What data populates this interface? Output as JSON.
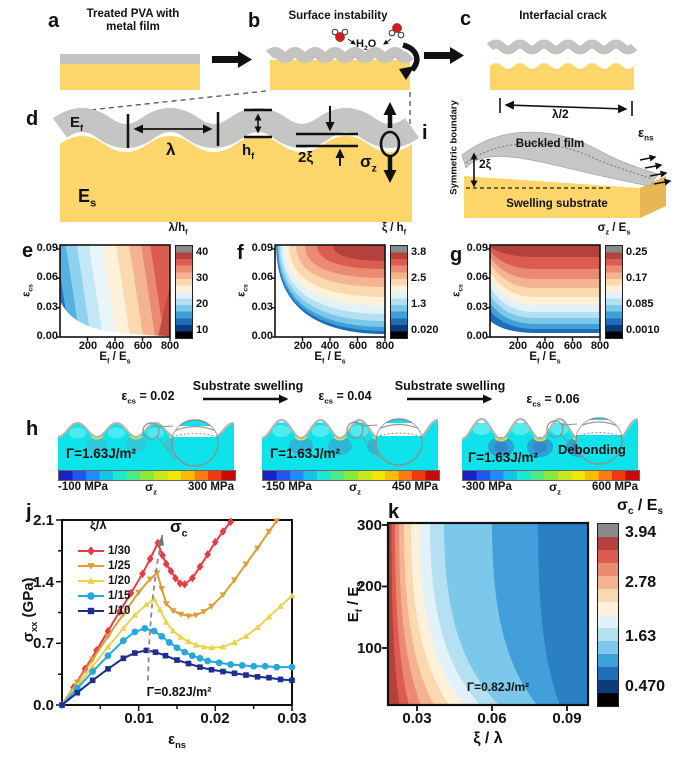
{
  "letters": {
    "a": "a",
    "b": "b",
    "c": "c",
    "d": "d",
    "e": "e",
    "f": "f",
    "g": "g",
    "h": "h",
    "i": "i",
    "j": "j",
    "k": "k"
  },
  "row1": {
    "a_title_1": "Treated PVA with",
    "a_title_2": "metal film",
    "b_title": "Surface instability",
    "c_title": "Interfacial crack"
  },
  "labels": {
    "h2o": [
      [
        "H",
        0
      ],
      [
        "2",
        1
      ],
      [
        "O",
        0
      ]
    ],
    "ef": [
      [
        "E",
        0
      ],
      [
        "f",
        1
      ]
    ],
    "es": [
      [
        "E",
        0
      ],
      [
        "s",
        1
      ]
    ],
    "hf": [
      [
        "h",
        0
      ],
      [
        "f",
        1
      ]
    ],
    "lambda": "λ",
    "two_xi": "2ξ",
    "half_wavelength": "λ/2",
    "eps_cs": [
      [
        "ε",
        0
      ],
      [
        "cs",
        1
      ]
    ],
    "eps_ns": [
      [
        "ε",
        0
      ],
      [
        "ns",
        1
      ]
    ],
    "sigma_z": [
      [
        "σ",
        0
      ],
      [
        "z",
        1
      ]
    ],
    "sigma_c": [
      [
        "σ",
        0
      ],
      [
        "c",
        1
      ]
    ],
    "sigma_xx_gpa": [
      [
        "σ",
        0
      ],
      [
        "xx",
        1
      ],
      [
        " (GPa)",
        0
      ]
    ],
    "ef_es": [
      [
        "E",
        0
      ],
      [
        "f",
        1
      ],
      [
        " / E",
        0
      ],
      [
        "s",
        1
      ]
    ],
    "lambda_hf": [
      [
        "λ/h",
        0
      ],
      [
        "f",
        1
      ]
    ],
    "xi_hf": [
      [
        "ξ / h",
        0
      ],
      [
        "f",
        1
      ]
    ],
    "sigmaz_es": [
      [
        "σ",
        0
      ],
      [
        "z",
        1
      ],
      [
        " / E",
        0
      ],
      [
        "s",
        1
      ]
    ],
    "sigmac_es": [
      [
        "σ",
        0
      ],
      [
        "c",
        1
      ],
      [
        " / E",
        0
      ],
      [
        "s",
        1
      ]
    ],
    "xi_lambda": "ξ / λ",
    "buckled_film": "Buckled film",
    "symmetric_boundary": "Symmetric boundary",
    "swelling_substrate": "Swelling substrate"
  },
  "panel_h": {
    "swelling_label": "Substrate swelling",
    "cb_center": [
      [
        "σ",
        0
      ],
      [
        "z",
        1
      ]
    ],
    "cases": [
      {
        "eps": [
          [
            "ε",
            0
          ],
          [
            "cs",
            1
          ],
          [
            " = 0.02",
            0
          ]
        ],
        "gamma": "Γ=1.63J/m²",
        "cb_min": "-100 MPa",
        "cb_max": "300 MPa"
      },
      {
        "eps": [
          [
            "ε",
            0
          ],
          [
            "cs",
            1
          ],
          [
            " = 0.04",
            0
          ]
        ],
        "gamma": "Γ=1.63J/m²",
        "cb_min": "-150 MPa",
        "cb_max": "450 MPa"
      },
      {
        "eps": [
          [
            "ε",
            0
          ],
          [
            "cs",
            1
          ],
          [
            " = 0.06",
            0
          ]
        ],
        "gamma": "Γ=1.63J/m²",
        "cb_min": "-300 MPa",
        "cb_max": "600 MPa",
        "debonding": "Debonding"
      }
    ]
  },
  "colors": {
    "palette": [
      "#8a8a8a",
      "#b5413c",
      "#dc5c50",
      "#eb8a72",
      "#f5b491",
      "#fbd9af",
      "#fdf2d9",
      "#e2f2f8",
      "#b4e0f2",
      "#7cc8ea",
      "#3fa0d8",
      "#1d6db8",
      "#0b3d7e",
      "#000000"
    ],
    "jet": [
      "#1822c8",
      "#2255f0",
      "#1f8cfa",
      "#16c3ea",
      "#1ce8d4",
      "#4ce98a",
      "#8ae83c",
      "#c6e81e",
      "#f2e606",
      "#fbbc02",
      "#fb7d10",
      "#ee3a0c",
      "#c40a0a"
    ],
    "substrate_yellow": "#fcd66b",
    "film_gray": "#c3c3c1",
    "fem_cyan": "#0ee2ea",
    "water_red": "#c92121",
    "debond_text": "#3b5a68",
    "guide_gray": "#8a8a8a"
  },
  "chart_data": [
    {
      "id": "e",
      "type": "contour",
      "xlabel": "Ef / Es",
      "ylabel": "εcs",
      "xlim": [
        0,
        800
      ],
      "ylim": [
        0,
        0.094
      ],
      "xtick_labels": [
        "200",
        "400",
        "600",
        "800"
      ],
      "ytick_labels": [
        "0.09",
        "0.06",
        "0.03",
        "0.00"
      ],
      "colorbar_title": "λ/hf",
      "cbar_tick_labels": [
        "40",
        "30",
        "20",
        "10"
      ],
      "levels": [
        10,
        20,
        30,
        40
      ],
      "trend": "wrinkle wavelength ratio λ/hf rises with Ef/Es (near-vertical contours) from ~10 (blue, Ef/Es<100) to >40 (dark red, Ef/Es≈800); white wedge at low εcs = no wrinkling"
    },
    {
      "id": "f",
      "type": "contour",
      "xlabel": "Ef / Es",
      "ylabel": "εcs",
      "xlim": [
        0,
        800
      ],
      "ylim": [
        0,
        0.094
      ],
      "xtick_labels": [
        "200",
        "400",
        "600",
        "800"
      ],
      "ytick_labels": [
        "0.09",
        "0.06",
        "0.03",
        "0.00"
      ],
      "colorbar_title": "ξ / hf",
      "cbar_tick_labels": [
        "3.8",
        "2.5",
        "1.3",
        "0.020"
      ],
      "levels": [
        0.02,
        1.3,
        2.5,
        3.8
      ],
      "trend": "amplitude ratio ξ/hf grows with both Ef/Es and εcs; hyperbolic contours from ~0.02 near the axes to ~3.8 at the top-right corner"
    },
    {
      "id": "g",
      "type": "contour",
      "xlabel": "Ef / Es",
      "ylabel": "εcs",
      "xlim": [
        0,
        800
      ],
      "ylim": [
        0,
        0.094
      ],
      "xtick_labels": [
        "200",
        "400",
        "600",
        "800"
      ],
      "ytick_labels": [
        "0.09",
        "0.06",
        "0.03",
        "0.00"
      ],
      "colorbar_title": "σz / Es",
      "cbar_tick_labels": [
        "0.25",
        "0.17",
        "0.085",
        "0.0010"
      ],
      "levels": [
        0.001,
        0.085,
        0.17,
        0.25
      ],
      "trend": "normal interface stress σz/Es increases mainly with εcs (near-horizontal contours), from ~0.001 (blue, bottom) to ~0.25 (dark red, top)"
    },
    {
      "id": "j",
      "type": "line",
      "xlabel": "εns",
      "ylabel": "σxx (GPa)",
      "xlim": [
        0,
        0.03
      ],
      "ylim": [
        0,
        2.1
      ],
      "xtick_labels": [
        "0.01",
        "0.02",
        "0.03"
      ],
      "ytick_labels": [
        "2.1",
        "1.4",
        "0.7",
        "0.0"
      ],
      "legend_title": "ξ/λ",
      "legend_position": "top-left",
      "annotation_peak": "σc",
      "annotation_gamma": "Γ=0.82J/m²",
      "guide": [
        [
          0.0112,
          0.28
        ],
        [
          0.0114,
          0.75
        ],
        [
          0.0118,
          1.2
        ],
        [
          0.0124,
          1.6
        ],
        [
          0.0131,
          1.93
        ]
      ],
      "series": [
        {
          "name": "1/30",
          "color": "#e63c46",
          "marker": "diamond",
          "points": [
            [
              0,
              0
            ],
            [
              0.0015,
              0.2
            ],
            [
              0.003,
              0.41
            ],
            [
              0.0045,
              0.62
            ],
            [
              0.006,
              0.84
            ],
            [
              0.0075,
              1.06
            ],
            [
              0.009,
              1.27
            ],
            [
              0.0105,
              1.49
            ],
            [
              0.0115,
              1.66
            ],
            [
              0.0125,
              1.84
            ],
            [
              0.0131,
              1.7
            ],
            [
              0.0136,
              1.6
            ],
            [
              0.0142,
              1.52
            ],
            [
              0.0148,
              1.44
            ],
            [
              0.0154,
              1.38
            ],
            [
              0.016,
              1.37
            ],
            [
              0.017,
              1.44
            ],
            [
              0.018,
              1.57
            ],
            [
              0.019,
              1.71
            ],
            [
              0.02,
              1.85
            ],
            [
              0.021,
              1.97
            ],
            [
              0.022,
              2.08
            ]
          ]
        },
        {
          "name": "1/25",
          "color": "#dd9e35",
          "marker": "tri-down",
          "points": [
            [
              0,
              0
            ],
            [
              0.002,
              0.26
            ],
            [
              0.004,
              0.52
            ],
            [
              0.006,
              0.78
            ],
            [
              0.008,
              1.03
            ],
            [
              0.01,
              1.28
            ],
            [
              0.0115,
              1.43
            ],
            [
              0.0124,
              1.5
            ],
            [
              0.013,
              1.32
            ],
            [
              0.0136,
              1.15
            ],
            [
              0.0145,
              1.07
            ],
            [
              0.0155,
              1.03
            ],
            [
              0.0165,
              1.01
            ],
            [
              0.0175,
              1.02
            ],
            [
              0.0185,
              1.06
            ],
            [
              0.0195,
              1.12
            ],
            [
              0.021,
              1.25
            ],
            [
              0.0225,
              1.42
            ],
            [
              0.024,
              1.6
            ],
            [
              0.0255,
              1.78
            ],
            [
              0.027,
              1.97
            ],
            [
              0.028,
              2.09
            ]
          ]
        },
        {
          "name": "1/20",
          "color": "#e9d44f",
          "marker": "tri-up",
          "points": [
            [
              0,
              0
            ],
            [
              0.002,
              0.22
            ],
            [
              0.004,
              0.44
            ],
            [
              0.006,
              0.66
            ],
            [
              0.008,
              0.87
            ],
            [
              0.0095,
              1.02
            ],
            [
              0.011,
              1.14
            ],
            [
              0.012,
              1.2
            ],
            [
              0.0128,
              1.08
            ],
            [
              0.0136,
              0.94
            ],
            [
              0.0145,
              0.84
            ],
            [
              0.0155,
              0.77
            ],
            [
              0.0165,
              0.72
            ],
            [
              0.0175,
              0.68
            ],
            [
              0.0185,
              0.66
            ],
            [
              0.0195,
              0.65
            ],
            [
              0.021,
              0.66
            ],
            [
              0.0225,
              0.71
            ],
            [
              0.024,
              0.78
            ],
            [
              0.0255,
              0.88
            ],
            [
              0.027,
              1.0
            ],
            [
              0.0285,
              1.12
            ],
            [
              0.03,
              1.24
            ]
          ]
        },
        {
          "name": "1/15",
          "color": "#25a8e0",
          "marker": "circle",
          "points": [
            [
              0,
              0
            ],
            [
              0.002,
              0.19
            ],
            [
              0.004,
              0.38
            ],
            [
              0.006,
              0.56
            ],
            [
              0.008,
              0.73
            ],
            [
              0.0095,
              0.83
            ],
            [
              0.0108,
              0.87
            ],
            [
              0.012,
              0.84
            ],
            [
              0.013,
              0.78
            ],
            [
              0.014,
              0.71
            ],
            [
              0.015,
              0.65
            ],
            [
              0.016,
              0.6
            ],
            [
              0.017,
              0.56
            ],
            [
              0.018,
              0.53
            ],
            [
              0.019,
              0.5
            ],
            [
              0.0205,
              0.48
            ],
            [
              0.022,
              0.46
            ],
            [
              0.0235,
              0.45
            ],
            [
              0.025,
              0.44
            ],
            [
              0.0265,
              0.44
            ],
            [
              0.028,
              0.43
            ],
            [
              0.03,
              0.43
            ]
          ]
        },
        {
          "name": "1/10",
          "color": "#1c2f91",
          "marker": "square",
          "points": [
            [
              0,
              0
            ],
            [
              0.002,
              0.14
            ],
            [
              0.004,
              0.28
            ],
            [
              0.006,
              0.41
            ],
            [
              0.008,
              0.53
            ],
            [
              0.0095,
              0.59
            ],
            [
              0.011,
              0.62
            ],
            [
              0.0122,
              0.6
            ],
            [
              0.0135,
              0.56
            ],
            [
              0.015,
              0.51
            ],
            [
              0.0165,
              0.47
            ],
            [
              0.018,
              0.43
            ],
            [
              0.0195,
              0.4
            ],
            [
              0.021,
              0.38
            ],
            [
              0.0225,
              0.36
            ],
            [
              0.024,
              0.34
            ],
            [
              0.0255,
              0.32
            ],
            [
              0.027,
              0.31
            ],
            [
              0.0285,
              0.29
            ],
            [
              0.03,
              0.28
            ]
          ]
        }
      ]
    },
    {
      "id": "k",
      "type": "contour",
      "xlabel": "ξ / λ",
      "ylabel": "Ef / Es",
      "xlim": [
        0.018,
        0.098
      ],
      "ylim": [
        30,
        310
      ],
      "xtick_labels": [
        "0.03",
        "0.06",
        "0.09"
      ],
      "ytick_labels": [
        "300",
        "200",
        "100"
      ],
      "colorbar_title": "σc / Es",
      "cbar_tick_labels": [
        "3.94",
        "2.78",
        "1.63",
        "0.470"
      ],
      "levels": [
        0.47,
        1.63,
        2.78,
        3.94
      ],
      "annotation": "Γ=0.82J/m²",
      "trend": "critical stress σc/Es is largest (>3.94, dark red) at small ξ/λ and high Ef/Es (top-left sliver) and falls to ~0.47 (blue) over most of the map for ξ/λ>0.05"
    }
  ]
}
